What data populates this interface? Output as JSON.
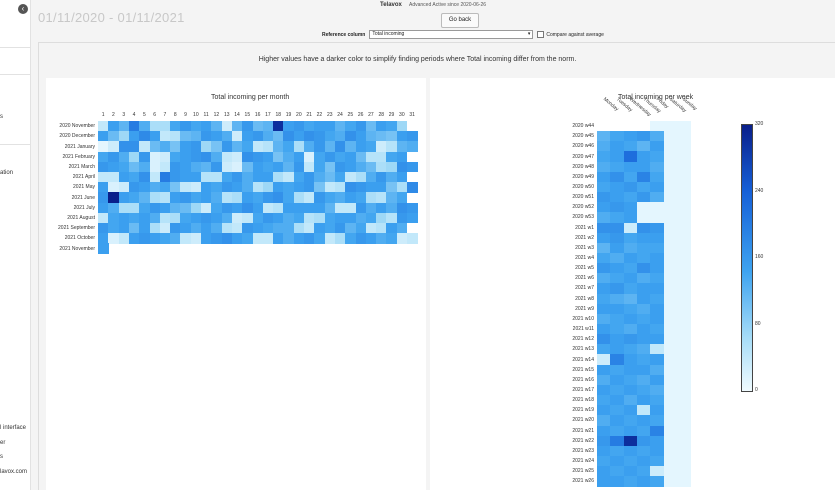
{
  "app": {
    "brand": "Telavox",
    "edition": "Advanced",
    "active_since": "Active since 2020-06-26"
  },
  "sidebar": {
    "items": [
      "s",
      "ation",
      "l interface",
      "er",
      "s",
      "lavox.com"
    ]
  },
  "date_range": "01/11/2020 - 01/11/2021",
  "go_back_label": "Go back",
  "reference": {
    "label": "Reference column",
    "selected": "Total incoming",
    "compare_label": "Compare against average"
  },
  "headline": "Higher values have a darker color to simplify finding periods where Total incoming differ from the norm.",
  "colors": {
    "min": "#f0fbff",
    "max": "#0a1f8a"
  },
  "chart_data": [
    {
      "type": "heatmap",
      "title": "Total incoming per month",
      "columns": [
        "1",
        "2",
        "3",
        "4",
        "5",
        "6",
        "7",
        "8",
        "9",
        "10",
        "11",
        "12",
        "13",
        "14",
        "15",
        "16",
        "17",
        "18",
        "19",
        "20",
        "21",
        "22",
        "23",
        "24",
        "25",
        "26",
        "27",
        "28",
        "29",
        "30",
        "31"
      ],
      "rows": [
        "2020 November",
        "2020 December",
        "2021 January",
        "2021 February",
        "2021 March",
        "2021 April",
        "2021 May",
        "2021 June",
        "2021 July",
        "2021 August",
        "2021 September",
        "2021 October",
        "2021 November"
      ],
      "colorbar": {
        "min": 0,
        "max": 320,
        "ticks": [
          "320",
          "240",
          "160",
          "80",
          "0"
        ]
      },
      "values": [
        [
          40,
          150,
          120,
          200,
          130,
          60,
          60,
          140,
          160,
          140,
          150,
          120,
          30,
          120,
          160,
          110,
          120,
          300,
          150,
          160,
          140,
          150,
          150,
          120,
          140,
          160,
          110,
          150,
          140,
          70,
          null
        ],
        [
          150,
          110,
          70,
          150,
          180,
          150,
          40,
          50,
          110,
          120,
          160,
          150,
          130,
          30,
          150,
          160,
          130,
          110,
          170,
          150,
          170,
          160,
          140,
          130,
          170,
          150,
          120,
          110,
          100,
          150,
          160
        ],
        [
          10,
          30,
          170,
          170,
          40,
          110,
          130,
          100,
          150,
          160,
          70,
          100,
          160,
          120,
          140,
          40,
          50,
          120,
          140,
          60,
          130,
          160,
          120,
          170,
          120,
          150,
          140,
          30,
          50,
          120,
          130
        ],
        [
          140,
          160,
          130,
          70,
          160,
          20,
          30,
          140,
          150,
          160,
          170,
          130,
          40,
          30,
          170,
          160,
          150,
          100,
          130,
          150,
          20,
          140,
          160,
          140,
          150,
          110,
          50,
          50,
          140,
          150,
          null
        ],
        [
          160,
          150,
          140,
          110,
          130,
          20,
          40,
          160,
          150,
          130,
          120,
          160,
          30,
          20,
          110,
          150,
          140,
          150,
          120,
          160,
          40,
          140,
          100,
          160,
          150,
          130,
          110,
          60,
          70,
          170,
          160
        ],
        [
          40,
          40,
          150,
          140,
          170,
          40,
          200,
          160,
          150,
          150,
          50,
          50,
          140,
          160,
          130,
          150,
          150,
          60,
          40,
          140,
          160,
          130,
          110,
          140,
          40,
          60,
          130,
          160,
          130,
          150,
          null
        ],
        [
          150,
          20,
          30,
          160,
          150,
          130,
          140,
          100,
          40,
          30,
          150,
          140,
          160,
          150,
          130,
          50,
          70,
          150,
          140,
          150,
          160,
          100,
          40,
          50,
          170,
          160,
          150,
          150,
          100,
          60,
          180
        ],
        [
          160,
          320,
          150,
          140,
          120,
          60,
          50,
          150,
          160,
          140,
          150,
          130,
          50,
          60,
          150,
          140,
          160,
          170,
          140,
          60,
          40,
          160,
          140,
          130,
          150,
          140,
          60,
          50,
          120,
          140,
          null
        ],
        [
          150,
          130,
          60,
          60,
          140,
          160,
          150,
          120,
          110,
          70,
          30,
          140,
          160,
          150,
          170,
          150,
          40,
          50,
          150,
          150,
          150,
          150,
          120,
          40,
          40,
          160,
          130,
          150,
          130,
          170,
          160
        ],
        [
          40,
          140,
          150,
          140,
          150,
          130,
          50,
          60,
          140,
          150,
          160,
          150,
          130,
          30,
          40,
          140,
          160,
          150,
          130,
          140,
          50,
          60,
          140,
          150,
          150,
          130,
          140,
          70,
          50,
          160,
          150
        ],
        [
          160,
          140,
          150,
          110,
          150,
          60,
          30,
          160,
          150,
          130,
          150,
          130,
          50,
          40,
          160,
          150,
          140,
          130,
          130,
          60,
          40,
          150,
          140,
          160,
          120,
          140,
          40,
          50,
          150,
          130,
          null
        ],
        [
          150,
          20,
          40,
          150,
          160,
          150,
          140,
          130,
          40,
          30,
          150,
          160,
          170,
          150,
          140,
          40,
          40,
          150,
          130,
          150,
          160,
          140,
          40,
          60,
          140,
          160,
          150,
          130,
          140,
          30,
          40
        ],
        [
          150,
          null,
          null,
          null,
          null,
          null,
          null,
          null,
          null,
          null,
          null,
          null,
          null,
          null,
          null,
          null,
          null,
          null,
          null,
          null,
          null,
          null,
          null,
          null,
          null,
          null,
          null,
          null,
          null,
          null,
          null
        ]
      ]
    },
    {
      "type": "heatmap",
      "title": "Total incoming per week",
      "columns": [
        "Monday",
        "Tuesday",
        "Wednesday",
        "Thursday",
        "Friday",
        "Saturday",
        "Sunday"
      ],
      "rows": [
        "2020 w44",
        "2020 w45",
        "2020 w46",
        "2020 w47",
        "2020 w48",
        "2020 w49",
        "2020 w50",
        "2020 w51",
        "2020 w52",
        "2020 w53",
        "2021 w1",
        "2021 w2",
        "2021 w3",
        "2021 w4",
        "2021 w5",
        "2021 w6",
        "2021 w7",
        "2021 w8",
        "2021 w9",
        "2021 w10",
        "2021 w11",
        "2021 w12",
        "2021 w13",
        "2021 w14",
        "2021 w15",
        "2021 w16",
        "2021 w17",
        "2021 w18",
        "2021 w19",
        "2021 w20",
        "2021 w21",
        "2021 w22",
        "2021 w23",
        "2021 w24",
        "2021 w25",
        "2021 w26"
      ],
      "colorbar": {
        "min": 0,
        "max": 320,
        "ticks": [
          "320",
          "240",
          "160",
          "80",
          "0"
        ]
      },
      "values": [
        [
          null,
          null,
          null,
          null,
          10,
          10,
          10
        ],
        [
          120,
          140,
          150,
          160,
          130,
          10,
          10
        ],
        [
          130,
          150,
          140,
          120,
          150,
          10,
          10
        ],
        [
          140,
          150,
          220,
          150,
          140,
          10,
          10
        ],
        [
          130,
          140,
          150,
          150,
          130,
          10,
          10
        ],
        [
          150,
          170,
          140,
          190,
          140,
          10,
          10
        ],
        [
          140,
          150,
          160,
          140,
          150,
          10,
          10
        ],
        [
          160,
          150,
          140,
          160,
          130,
          10,
          10
        ],
        [
          150,
          160,
          150,
          10,
          10,
          10,
          10
        ],
        [
          130,
          140,
          150,
          10,
          10,
          10,
          10
        ],
        [
          170,
          170,
          30,
          170,
          160,
          10,
          10
        ],
        [
          150,
          160,
          140,
          150,
          150,
          10,
          10
        ],
        [
          120,
          150,
          130,
          140,
          140,
          10,
          10
        ],
        [
          140,
          130,
          150,
          140,
          150,
          10,
          10
        ],
        [
          160,
          150,
          140,
          170,
          150,
          10,
          10
        ],
        [
          130,
          140,
          150,
          130,
          140,
          10,
          10
        ],
        [
          150,
          160,
          140,
          150,
          150,
          10,
          10
        ],
        [
          140,
          130,
          120,
          150,
          140,
          10,
          10
        ],
        [
          150,
          150,
          140,
          130,
          150,
          10,
          10
        ],
        [
          130,
          140,
          150,
          140,
          150,
          10,
          10
        ],
        [
          150,
          140,
          130,
          150,
          140,
          10,
          10
        ],
        [
          170,
          150,
          160,
          150,
          150,
          10,
          10
        ],
        [
          140,
          150,
          140,
          130,
          40,
          10,
          10
        ],
        [
          30,
          190,
          150,
          140,
          150,
          10,
          10
        ],
        [
          150,
          140,
          150,
          150,
          130,
          10,
          10
        ],
        [
          130,
          150,
          140,
          130,
          150,
          10,
          10
        ],
        [
          150,
          140,
          150,
          140,
          130,
          10,
          10
        ],
        [
          140,
          150,
          130,
          150,
          140,
          10,
          10
        ],
        [
          150,
          140,
          150,
          40,
          150,
          10,
          10
        ],
        [
          130,
          150,
          140,
          150,
          140,
          10,
          10
        ],
        [
          150,
          140,
          150,
          140,
          190,
          10,
          10
        ],
        [
          160,
          200,
          300,
          160,
          150,
          10,
          10
        ],
        [
          150,
          140,
          150,
          140,
          150,
          10,
          10
        ],
        [
          140,
          150,
          140,
          150,
          140,
          10,
          10
        ],
        [
          150,
          140,
          150,
          140,
          30,
          10,
          10
        ],
        [
          150,
          150,
          140,
          150,
          140,
          10,
          10
        ]
      ]
    }
  ]
}
